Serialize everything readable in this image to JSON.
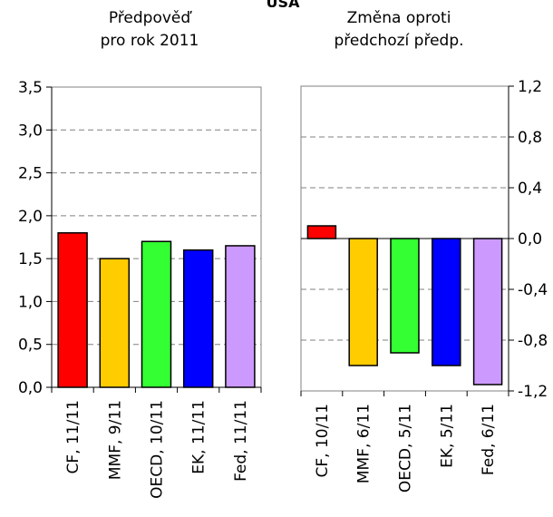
{
  "header": {
    "country": "USA"
  },
  "chart_data": [
    {
      "type": "bar",
      "title": "Předpověď pro rok 2011",
      "title_lines": [
        "Předpověď",
        "pro rok 2011"
      ],
      "categories": [
        "CF, 11/11",
        "MMF, 9/11",
        "OECD, 10/11",
        "EK, 11/11",
        "Fed, 11/11"
      ],
      "values": [
        1.8,
        1.5,
        1.7,
        1.6,
        1.65
      ],
      "colors": [
        "#ff0000",
        "#ffcc00",
        "#33ff33",
        "#0000ff",
        "#cc99ff"
      ],
      "ylim": [
        0,
        3.5
      ],
      "yticks": [
        "0,0",
        "0,5",
        "1,0",
        "1,5",
        "2,0",
        "2,5",
        "3,0",
        "3,5"
      ],
      "axis_side": "left",
      "grid": true,
      "xlabel": "",
      "ylabel": ""
    },
    {
      "type": "bar",
      "title": "Změna oproti předchozí předp.",
      "title_lines": [
        "Změna oproti",
        "předchozí předp."
      ],
      "categories": [
        "CF, 10/11",
        "MMF, 6/11",
        "OECD, 5/11",
        "EK, 5/11",
        "Fed, 6/11"
      ],
      "values": [
        0.1,
        -1.0,
        -0.9,
        -1.0,
        -1.15
      ],
      "colors": [
        "#ff0000",
        "#ffcc00",
        "#33ff33",
        "#0000ff",
        "#cc99ff"
      ],
      "ylim": [
        -1.2,
        1.2
      ],
      "yticks": [
        "-1,2",
        "-0,8",
        "-0,4",
        "0,0",
        "0,4",
        "0,8",
        "1,2"
      ],
      "axis_side": "right",
      "grid": true,
      "xlabel": "",
      "ylabel": ""
    }
  ]
}
